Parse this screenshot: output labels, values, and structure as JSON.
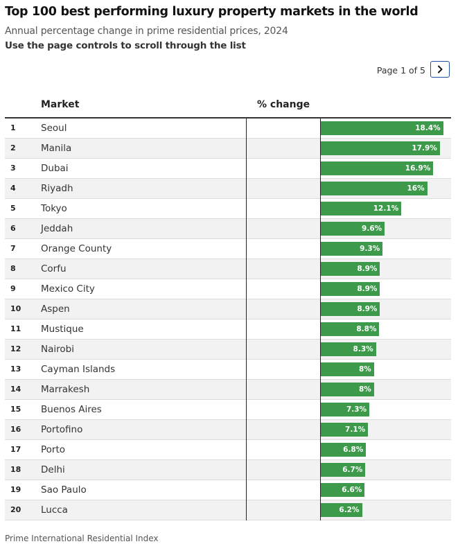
{
  "header": {
    "title": "Top 100 best performing luxury property markets in the world",
    "subtitle": "Annual percentage change in prime residential prices, 2024",
    "instruction": "Use the page controls to scroll through the list"
  },
  "pager": {
    "text": "Page 1 of 5",
    "next_icon": "chevron-right-icon"
  },
  "table": {
    "col_market": "Market",
    "col_change": "% change"
  },
  "colors": {
    "bar": "#3c9a4a",
    "row_alt": "#f2f2f2",
    "pager_border": "#1f4fa0"
  },
  "chart_data": {
    "type": "bar",
    "orientation": "horizontal",
    "xlim": [
      0,
      20
    ],
    "ranks": [
      "1",
      "2",
      "3",
      "4",
      "5",
      "6",
      "7",
      "8",
      "9",
      "10",
      "11",
      "12",
      "13",
      "14",
      "15",
      "16",
      "17",
      "18",
      "19",
      "20"
    ],
    "categories": [
      "Seoul",
      "Manila",
      "Dubai",
      "Riyadh",
      "Tokyo",
      "Jeddah",
      "Orange County",
      "Corfu",
      "Mexico City",
      "Aspen",
      "Mustique",
      "Nairobi",
      "Cayman Islands",
      "Marrakesh",
      "Buenos Aires",
      "Portofino",
      "Porto",
      "Delhi",
      "Sao Paulo",
      "Lucca"
    ],
    "values": [
      18.4,
      17.9,
      16.9,
      16,
      12.1,
      9.6,
      9.3,
      8.9,
      8.9,
      8.9,
      8.8,
      8.3,
      8,
      8,
      7.3,
      7.1,
      6.8,
      6.7,
      6.6,
      6.2
    ],
    "labels": [
      "18.4%",
      "17.9%",
      "16.9%",
      "16%",
      "12.1%",
      "9.6%",
      "9.3%",
      "8.9%",
      "8.9%",
      "8.9%",
      "8.8%",
      "8.3%",
      "8%",
      "8%",
      "7.3%",
      "7.1%",
      "6.8%",
      "6.7%",
      "6.6%",
      "6.2%"
    ]
  },
  "footer": {
    "source": "Prime International Residential Index"
  }
}
